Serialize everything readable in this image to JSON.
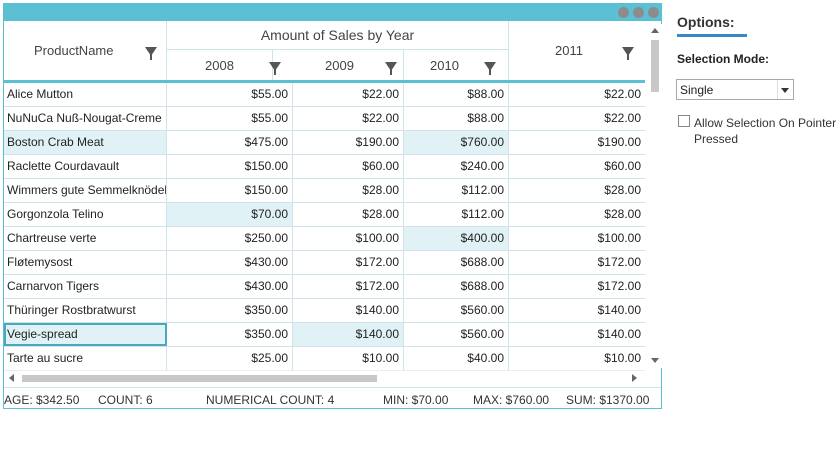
{
  "grid": {
    "headers": {
      "product": "ProductName",
      "group": "Amount of Sales by Year",
      "y2008": "2008",
      "y2009": "2009",
      "y2010": "2010",
      "y2011": "2011"
    },
    "rows": [
      {
        "name": "Alice Mutton",
        "y2008": "$55.00",
        "y2009": "$22.00",
        "y2010": "$88.00",
        "y2011": "$22.00"
      },
      {
        "name": "NuNuCa Nuß-Nougat-Creme",
        "y2008": "$55.00",
        "y2009": "$22.00",
        "y2010": "$88.00",
        "y2011": "$22.00"
      },
      {
        "name": "Boston Crab Meat",
        "y2008": "$475.00",
        "y2009": "$190.00",
        "y2010": "$760.00",
        "y2011": "$190.00"
      },
      {
        "name": "Raclette Courdavault",
        "y2008": "$150.00",
        "y2009": "$60.00",
        "y2010": "$240.00",
        "y2011": "$60.00"
      },
      {
        "name": "Wimmers gute Semmelknödel",
        "y2008": "$150.00",
        "y2009": "$28.00",
        "y2010": "$112.00",
        "y2011": "$28.00"
      },
      {
        "name": "Gorgonzola Telino",
        "y2008": "$70.00",
        "y2009": "$28.00",
        "y2010": "$112.00",
        "y2011": "$28.00"
      },
      {
        "name": "Chartreuse verte",
        "y2008": "$250.00",
        "y2009": "$100.00",
        "y2010": "$400.00",
        "y2011": "$100.00"
      },
      {
        "name": "Fløtemysost",
        "y2008": "$430.00",
        "y2009": "$172.00",
        "y2010": "$688.00",
        "y2011": "$172.00"
      },
      {
        "name": "Carnarvon Tigers",
        "y2008": "$430.00",
        "y2009": "$172.00",
        "y2010": "$688.00",
        "y2011": "$172.00"
      },
      {
        "name": "Thüringer Rostbratwurst",
        "y2008": "$350.00",
        "y2009": "$140.00",
        "y2010": "$560.00",
        "y2011": "$140.00"
      },
      {
        "name": "Vegie-spread",
        "y2008": "$350.00",
        "y2009": "$140.00",
        "y2010": "$560.00",
        "y2011": "$140.00"
      },
      {
        "name": "Tarte au sucre",
        "y2008": "$25.00",
        "y2009": "$10.00",
        "y2010": "$40.00",
        "y2011": "$10.00"
      }
    ],
    "aggregates": {
      "average": "AGE: $342.50",
      "count": "COUNT: 6",
      "numerical_count": "NUMERICAL COUNT: 4",
      "min": "MIN: $70.00",
      "max": "MAX: $760.00",
      "sum": "SUM: $1370.00"
    }
  },
  "options": {
    "title": "Options:",
    "selection_mode_label": "Selection Mode:",
    "selection_mode_value": "Single",
    "allow_selection_label": "Allow Selection On Pointer Pressed"
  },
  "colors": {
    "accent": "#5bc0d4",
    "selected_cell": "#e0f2f6",
    "underline": "#3a87c8"
  }
}
